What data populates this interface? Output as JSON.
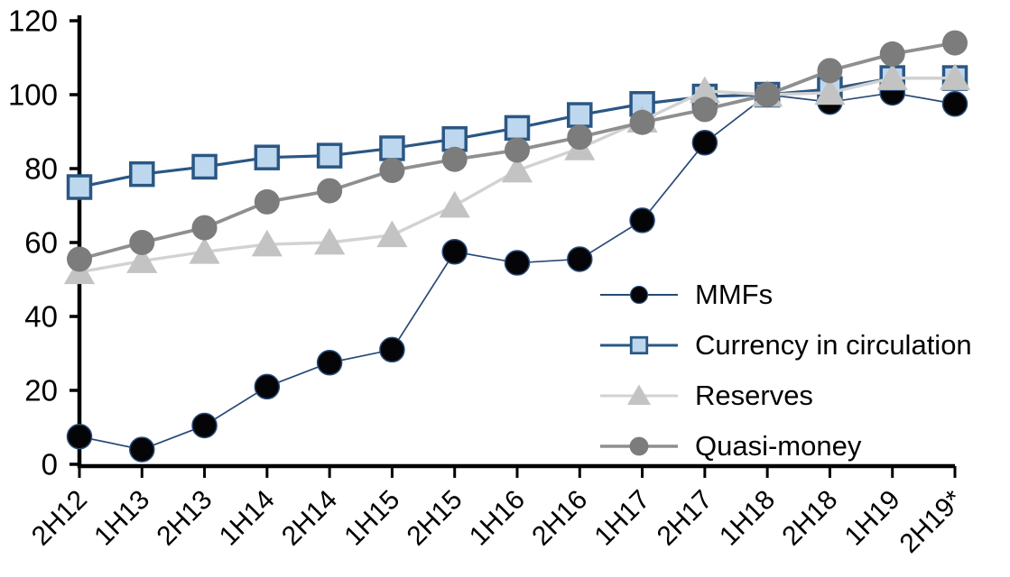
{
  "chart_data": {
    "type": "line",
    "title": "",
    "xlabel": "",
    "ylabel": "",
    "categories": [
      "2H12",
      "1H13",
      "2H13",
      "1H14",
      "2H14",
      "1H15",
      "2H15",
      "1H16",
      "2H16",
      "1H17",
      "2H17",
      "1H18",
      "2H18",
      "1H19",
      "2H19*"
    ],
    "series": [
      {
        "name": "MMFs",
        "marker": "circle",
        "line_color": "#274a78",
        "line_width": 1.7,
        "marker_fill": "#050507",
        "marker_stroke": "#274a78",
        "marker_stroke_width": 1.5,
        "marker_size": 27,
        "values": [
          7.5,
          4,
          10.5,
          21,
          27.5,
          31,
          57.5,
          54.5,
          55.5,
          66,
          87,
          100,
          98,
          100.5,
          97.5
        ]
      },
      {
        "name": "Currency in circulation",
        "marker": "square",
        "line_color": "#2a5784",
        "line_width": 3.2,
        "marker_fill": "#bdd7ee",
        "marker_stroke": "#2a5784",
        "marker_stroke_width": 3.5,
        "marker_size": 25,
        "values": [
          75,
          78.5,
          80.5,
          83,
          83.5,
          85.5,
          88,
          91,
          94.5,
          97.5,
          99.5,
          100,
          101.5,
          104.5,
          104.5
        ]
      },
      {
        "name": "Reserves",
        "marker": "triangle",
        "line_color": "#d2d2d2",
        "line_width": 3.4,
        "marker_fill": "#c3c3c3",
        "marker_stroke": "#c3c3c3",
        "marker_stroke_width": 0,
        "marker_size": 29,
        "values": [
          52,
          55,
          57.5,
          59.5,
          60,
          62,
          70,
          79.5,
          85.5,
          93,
          101,
          100,
          100.5,
          104.5,
          104.5
        ]
      },
      {
        "name": "Quasi-money",
        "marker": "circle",
        "line_color": "#8f8f8f",
        "line_width": 3.8,
        "marker_fill": "#7c7c7c",
        "marker_stroke": "#7c7c7c",
        "marker_stroke_width": 0,
        "marker_size": 28,
        "values": [
          55.5,
          60,
          64,
          71,
          74,
          79.5,
          82.5,
          85,
          88.5,
          92.5,
          96,
          100,
          106.5,
          111,
          114
        ]
      }
    ],
    "ylim": [
      0,
      120
    ],
    "yticks": [
      0,
      20,
      40,
      60,
      80,
      100,
      120
    ],
    "grid": false,
    "legend_position": "inside-right",
    "axis_color": "#000000",
    "background_color": "#ffffff"
  }
}
